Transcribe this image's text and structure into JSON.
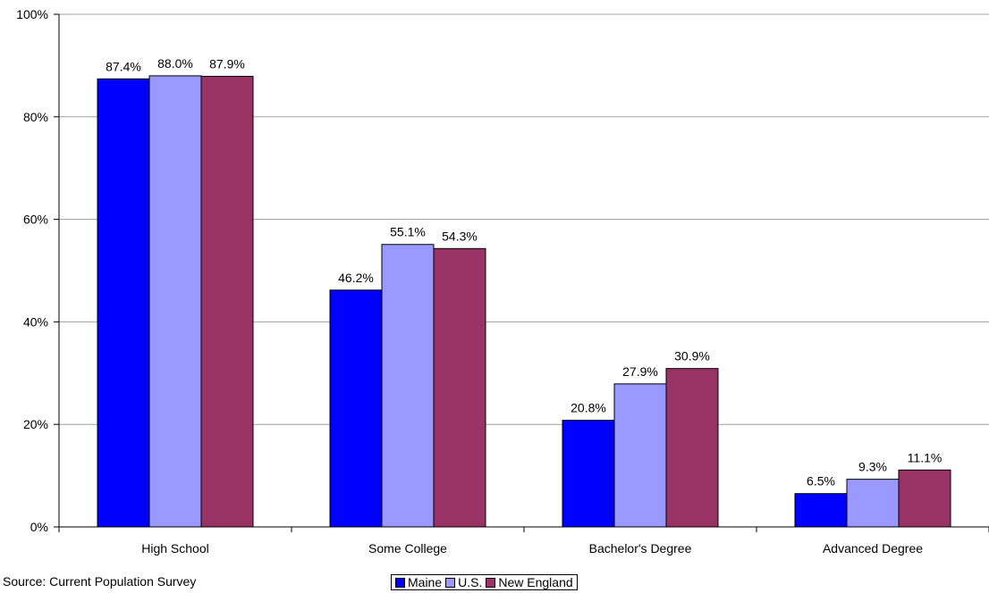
{
  "chart_data": {
    "type": "bar",
    "categories": [
      "High School",
      "Some College",
      "Bachelor's Degree",
      "Advanced Degree"
    ],
    "series": [
      {
        "name": "Maine",
        "color": "#0000ff",
        "values": [
          87.4,
          46.2,
          20.8,
          6.5
        ],
        "labels": [
          "87.4%",
          "46.2%",
          "20.8%",
          "6.5%"
        ]
      },
      {
        "name": "U.S.",
        "color": "#9999ff",
        "values": [
          88.0,
          55.1,
          27.9,
          9.3
        ],
        "labels": [
          "88.0%",
          "55.1%",
          "27.9%",
          "9.3%"
        ]
      },
      {
        "name": "New England",
        "color": "#993366",
        "values": [
          87.9,
          54.3,
          30.9,
          11.1
        ],
        "labels": [
          "87.9%",
          "54.3%",
          "30.9%",
          "11.1%"
        ]
      }
    ],
    "ylim": [
      0,
      100
    ],
    "yticks": [
      0,
      20,
      40,
      60,
      80,
      100
    ],
    "ytick_labels": [
      "0%",
      "20%",
      "40%",
      "60%",
      "80%",
      "100%"
    ],
    "grid": true,
    "legend_position": "bottom-center"
  },
  "source_note": "Source:  Current Population Survey"
}
